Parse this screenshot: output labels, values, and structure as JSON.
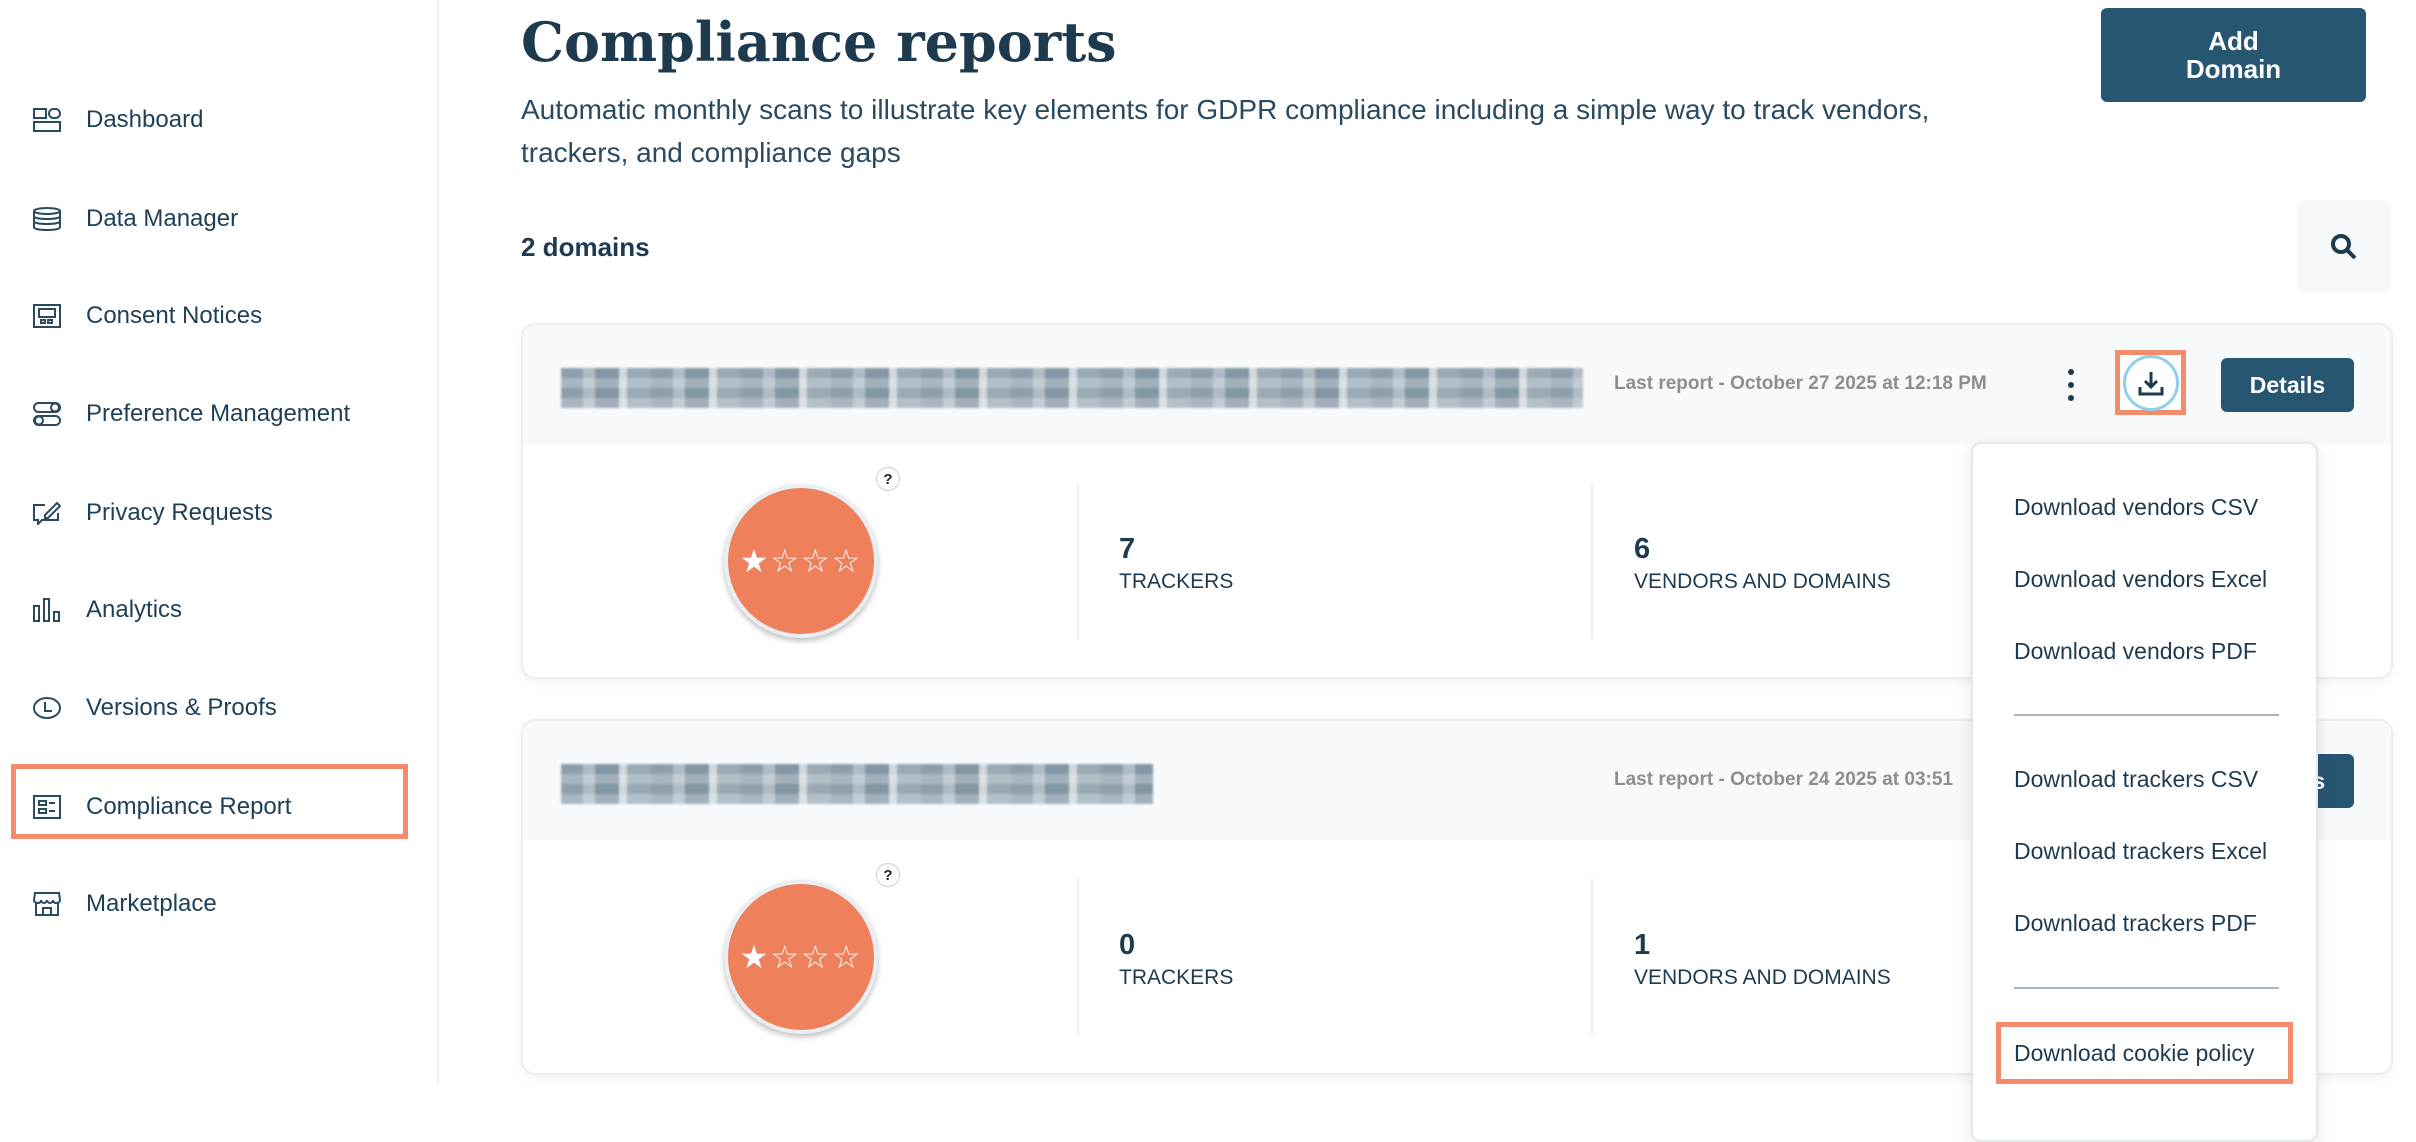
{
  "sidebar": {
    "items": [
      {
        "label": "Dashboard",
        "icon": "dashboard-icon"
      },
      {
        "label": "Data Manager",
        "icon": "database-icon"
      },
      {
        "label": "Consent Notices",
        "icon": "consent-notice-icon"
      },
      {
        "label": "Preference Management",
        "icon": "toggles-icon"
      },
      {
        "label": "Privacy Requests",
        "icon": "edit-request-icon"
      },
      {
        "label": "Analytics",
        "icon": "bar-chart-icon"
      },
      {
        "label": "Versions & Proofs",
        "icon": "clock-icon"
      },
      {
        "label": "Compliance Report",
        "icon": "report-icon",
        "active": true
      },
      {
        "label": "Marketplace",
        "icon": "store-icon"
      }
    ]
  },
  "header": {
    "title": "Compliance reports",
    "subtitle": "Automatic monthly scans to illustrate key elements for GDPR compliance including a simple way to track vendors, trackers, and compliance gaps",
    "add_button": "Add Domain"
  },
  "domain_count": "2 domains",
  "cards": [
    {
      "last_report": "Last report - October 27 2025 at 12:18 PM",
      "rating": "★☆☆☆",
      "rating_value": 1,
      "rating_max": 4,
      "help": "?",
      "trackers": "7",
      "trackers_label": "TRACKERS",
      "vendors": "6",
      "vendors_label": "VENDORS AND DOMAINS",
      "details": "Details"
    },
    {
      "last_report": "Last report - October 24 2025 at 03:51",
      "rating": "★☆☆☆",
      "rating_value": 1,
      "rating_max": 4,
      "help": "?",
      "trackers": "0",
      "trackers_label": "TRACKERS",
      "vendors": "1",
      "vendors_label": "VENDORS AND DOMAINS",
      "details": "Details"
    }
  ],
  "download_menu": {
    "items": [
      "Download vendors CSV",
      "Download vendors Excel",
      "Download vendors PDF",
      "Download trackers CSV",
      "Download trackers Excel",
      "Download trackers PDF",
      "Download cookie policy"
    ]
  },
  "colors": {
    "primary": "#275672",
    "accent": "#ee805c",
    "highlight": "#f28c6c",
    "text": "#1e3a4f"
  }
}
